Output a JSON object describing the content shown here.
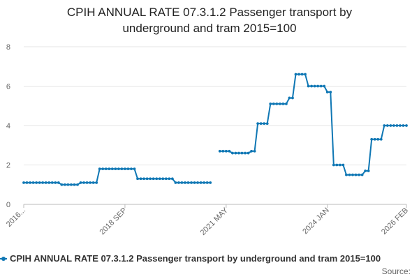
{
  "chart_data": {
    "type": "line",
    "title": "CPIH ANNUAL RATE 07.3.1.2 Passenger transport by underground and tram 2015=100",
    "title_lines": [
      "CPIH ANNUAL RATE 07.3.1.2 Passenger transport by",
      "underground and tram 2015=100"
    ],
    "xlabel": "",
    "ylabel": "",
    "ylim": [
      0,
      8
    ],
    "yticks": [
      0,
      2,
      4,
      6,
      8
    ],
    "x_tick_labels": [
      {
        "index": 0,
        "label": "2016..."
      },
      {
        "index": 32,
        "label": "2018 SEP"
      },
      {
        "index": 64,
        "label": "2021 MAY"
      },
      {
        "index": 96,
        "label": "2024 JAN"
      },
      {
        "index": 121,
        "label": "2026 FEB"
      }
    ],
    "grid": true,
    "legend_position": "bottom-left",
    "color": "#0f77b4",
    "series": [
      {
        "name": "CPIH ANNUAL RATE 07.3.1.2 Passenger transport by underground and tram 2015=100",
        "values": [
          1.1,
          1.1,
          1.1,
          1.1,
          1.1,
          1.1,
          1.1,
          1.1,
          1.1,
          1.1,
          1.1,
          1.1,
          1.0,
          1.0,
          1.0,
          1.0,
          1.0,
          1.0,
          1.1,
          1.1,
          1.1,
          1.1,
          1.1,
          1.1,
          1.8,
          1.8,
          1.8,
          1.8,
          1.8,
          1.8,
          1.8,
          1.8,
          1.8,
          1.8,
          1.8,
          1.8,
          1.3,
          1.3,
          1.3,
          1.3,
          1.3,
          1.3,
          1.3,
          1.3,
          1.3,
          1.3,
          1.3,
          1.3,
          1.1,
          1.1,
          1.1,
          1.1,
          1.1,
          1.1,
          1.1,
          1.1,
          1.1,
          1.1,
          1.1,
          1.1,
          null,
          null,
          2.7,
          2.7,
          2.7,
          2.7,
          2.6,
          2.6,
          2.6,
          2.6,
          2.6,
          2.6,
          2.7,
          2.7,
          4.1,
          4.1,
          4.1,
          4.1,
          5.1,
          5.1,
          5.1,
          5.1,
          5.1,
          5.1,
          5.4,
          5.4,
          6.6,
          6.6,
          6.6,
          6.6,
          6.0,
          6.0,
          6.0,
          6.0,
          6.0,
          6.0,
          5.7,
          5.7,
          2.0,
          2.0,
          2.0,
          2.0,
          1.5,
          1.5,
          1.5,
          1.5,
          1.5,
          1.5,
          1.7,
          1.7,
          3.3,
          3.3,
          3.3,
          3.3,
          4.0,
          4.0,
          4.0,
          4.0,
          4.0,
          4.0,
          4.0,
          4.0
        ]
      }
    ]
  },
  "source_label": "Source:"
}
